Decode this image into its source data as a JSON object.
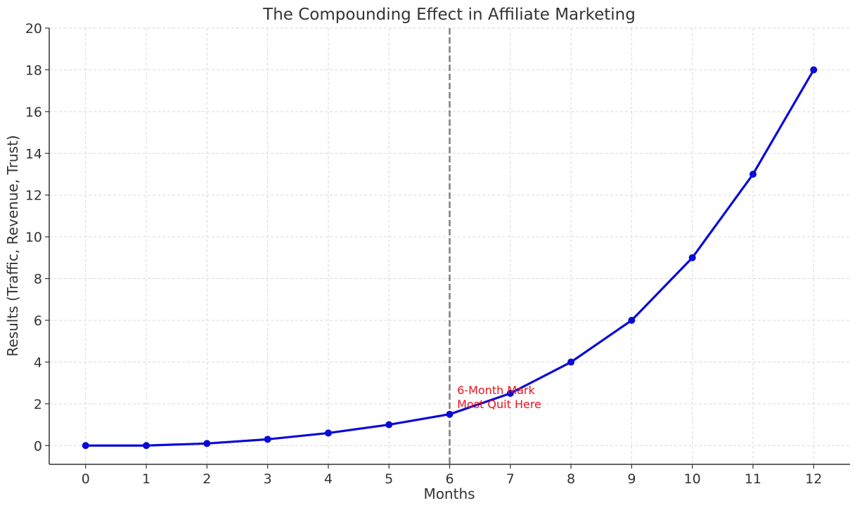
{
  "chart_data": {
    "type": "line",
    "title": "The Compounding Effect in Affiliate Marketing",
    "xlabel": "Months",
    "ylabel": "Results (Traffic, Revenue, Trust)",
    "xlim": [
      -0.6,
      12.6
    ],
    "ylim": [
      -0.9,
      20
    ],
    "x_ticks": [
      0,
      1,
      2,
      3,
      4,
      5,
      6,
      7,
      8,
      9,
      10,
      11,
      12
    ],
    "y_ticks": [
      0,
      2,
      4,
      6,
      8,
      10,
      12,
      14,
      16,
      18,
      20
    ],
    "grid": true,
    "series": [
      {
        "name": "Results",
        "color": "#0a0ad8",
        "x": [
          0,
          1,
          2,
          3,
          4,
          5,
          6,
          7,
          8,
          9,
          10,
          11,
          12
        ],
        "y": [
          0,
          0,
          0.1,
          0.3,
          0.6,
          1.0,
          1.5,
          2.5,
          4,
          6,
          9,
          13,
          18
        ]
      }
    ],
    "vline": {
      "x": 6,
      "color": "#7f7f7f",
      "style": "dashed"
    },
    "annotation": {
      "x": 6.1,
      "y": 2.0,
      "lines": [
        "6-Month Mark",
        "Most Quit Here"
      ],
      "color": "#e8141e"
    }
  }
}
